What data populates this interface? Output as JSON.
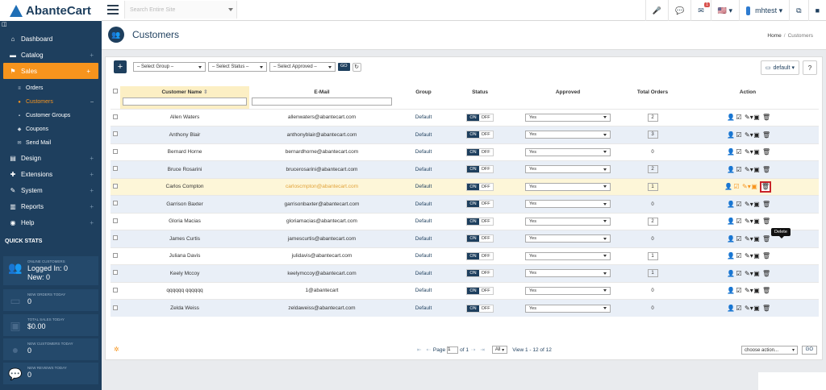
{
  "app": {
    "name": "AbanteCart"
  },
  "top": {
    "search_placeholder": "Search Entire Site",
    "mail_badge": "1",
    "user": "mhtest"
  },
  "sidebar": {
    "collapse_glyph": "◫",
    "items": [
      {
        "label": "Dashboard",
        "icon": "home-icon",
        "glyph": "⌂"
      },
      {
        "label": "Catalog",
        "icon": "folder-icon",
        "glyph": "▬",
        "plus": "+"
      },
      {
        "label": "Sales",
        "icon": "flag-icon",
        "glyph": "⚑",
        "plus": "+"
      },
      {
        "label": "Design",
        "icon": "file-icon",
        "glyph": "▤",
        "plus": "+"
      },
      {
        "label": "Extensions",
        "icon": "puzzle-icon",
        "glyph": "✚",
        "plus": "+"
      },
      {
        "label": "System",
        "icon": "wrench-icon",
        "glyph": "✎",
        "plus": "+"
      },
      {
        "label": "Reports",
        "icon": "chart-icon",
        "glyph": "▥",
        "plus": "+"
      },
      {
        "label": "Help",
        "icon": "globe-icon",
        "glyph": "◉",
        "plus": "+"
      }
    ],
    "sales_sub": [
      {
        "label": "Orders",
        "glyph": "≡"
      },
      {
        "label": "Customers",
        "glyph": "●",
        "minus": "–"
      },
      {
        "label": "Customer Groups",
        "glyph": "▪"
      },
      {
        "label": "Coupons",
        "glyph": "◆"
      },
      {
        "label": "Send Mail",
        "glyph": "✉"
      }
    ],
    "quick_stats_title": "QUICK STATS",
    "stats": [
      {
        "label": "ONLINE CUSTOMERS",
        "line1": "Logged In: 0",
        "line2": "New: 0"
      },
      {
        "label": "NEW ORDERS TODAY",
        "value": "0"
      },
      {
        "label": "TOTAL SALES TODAY",
        "value": "$0.00"
      },
      {
        "label": "NEW CUSTOMERS TODAY",
        "value": "0"
      },
      {
        "label": "NEW REVIEWS TODAY",
        "value": "0"
      }
    ]
  },
  "page": {
    "title": "Customers",
    "breadcrumb": {
      "home": "Home",
      "sep": "/",
      "current": "Customers"
    }
  },
  "toolbar": {
    "add": "+",
    "group_select": "– Select Group –",
    "status_select": "– Select Status –",
    "approved_select": "– Select Approved –",
    "go": "GO",
    "refresh": "↻",
    "default": "default",
    "help": "?"
  },
  "table": {
    "headers": {
      "name": "Customer Name",
      "sort": "⇕",
      "email": "E-Mail",
      "group": "Group",
      "status": "Status",
      "approved": "Approved",
      "orders": "Total Orders",
      "action": "Action"
    },
    "on": "ON",
    "off": "OFF",
    "rows": [
      {
        "name": "Allen Waters",
        "email": "allenwaters@abantecart.com",
        "group": "Default",
        "approved": "Yes",
        "orders": "2",
        "boxed": true
      },
      {
        "name": "Anthony Blair",
        "email": "anthonyblair@abantecart.com",
        "group": "Default",
        "approved": "Yes",
        "orders": "3",
        "boxed": true
      },
      {
        "name": "Bernard Horne",
        "email": "bernardhorne@abantecart.com",
        "group": "Default",
        "approved": "Yes",
        "orders": "0",
        "boxed": false
      },
      {
        "name": "Bruce Rosarini",
        "email": "brucerosarini@abantecart.com",
        "group": "Default",
        "approved": "Yes",
        "orders": "2",
        "boxed": true
      },
      {
        "name": "Carlos Compton",
        "email": "carloscmpton@abantecart.com",
        "group": "Default",
        "approved": "Yes",
        "orders": "1",
        "boxed": true
      },
      {
        "name": "Garrison Baxter",
        "email": "garrisonbaxter@abantecart.com",
        "group": "Default",
        "approved": "Yes",
        "orders": "0",
        "boxed": false
      },
      {
        "name": "Gloria Macias",
        "email": "gloriamacias@abantecart.com",
        "group": "Default",
        "approved": "Yes",
        "orders": "2",
        "boxed": true
      },
      {
        "name": "James Curtis",
        "email": "jamescurtis@abantecart.com",
        "group": "Default",
        "approved": "Yes",
        "orders": "0",
        "boxed": false
      },
      {
        "name": "Juliana Davis",
        "email": "julidavis@abantecart.com",
        "group": "Default",
        "approved": "Yes",
        "orders": "1",
        "boxed": true
      },
      {
        "name": "Keely Mccoy",
        "email": "keelymccoy@abantecart.com",
        "group": "Default",
        "approved": "Yes",
        "orders": "1",
        "boxed": true
      },
      {
        "name": "qqqqqq qqqqqq",
        "email": "1@abantecart",
        "group": "Default",
        "approved": "Yes",
        "orders": "0",
        "boxed": false
      },
      {
        "name": "Zelda Weiss",
        "email": "zeldaweiss@abantecart.com",
        "group": "Default",
        "approved": "Yes",
        "orders": "0",
        "boxed": false
      }
    ],
    "tooltip": "Delete"
  },
  "pager": {
    "page_label": "Page",
    "page_value": "1",
    "of": "of 1",
    "per_page": "All",
    "view": "View 1 - 12 of 12",
    "choose_action": "choose action...",
    "go": "GO"
  }
}
